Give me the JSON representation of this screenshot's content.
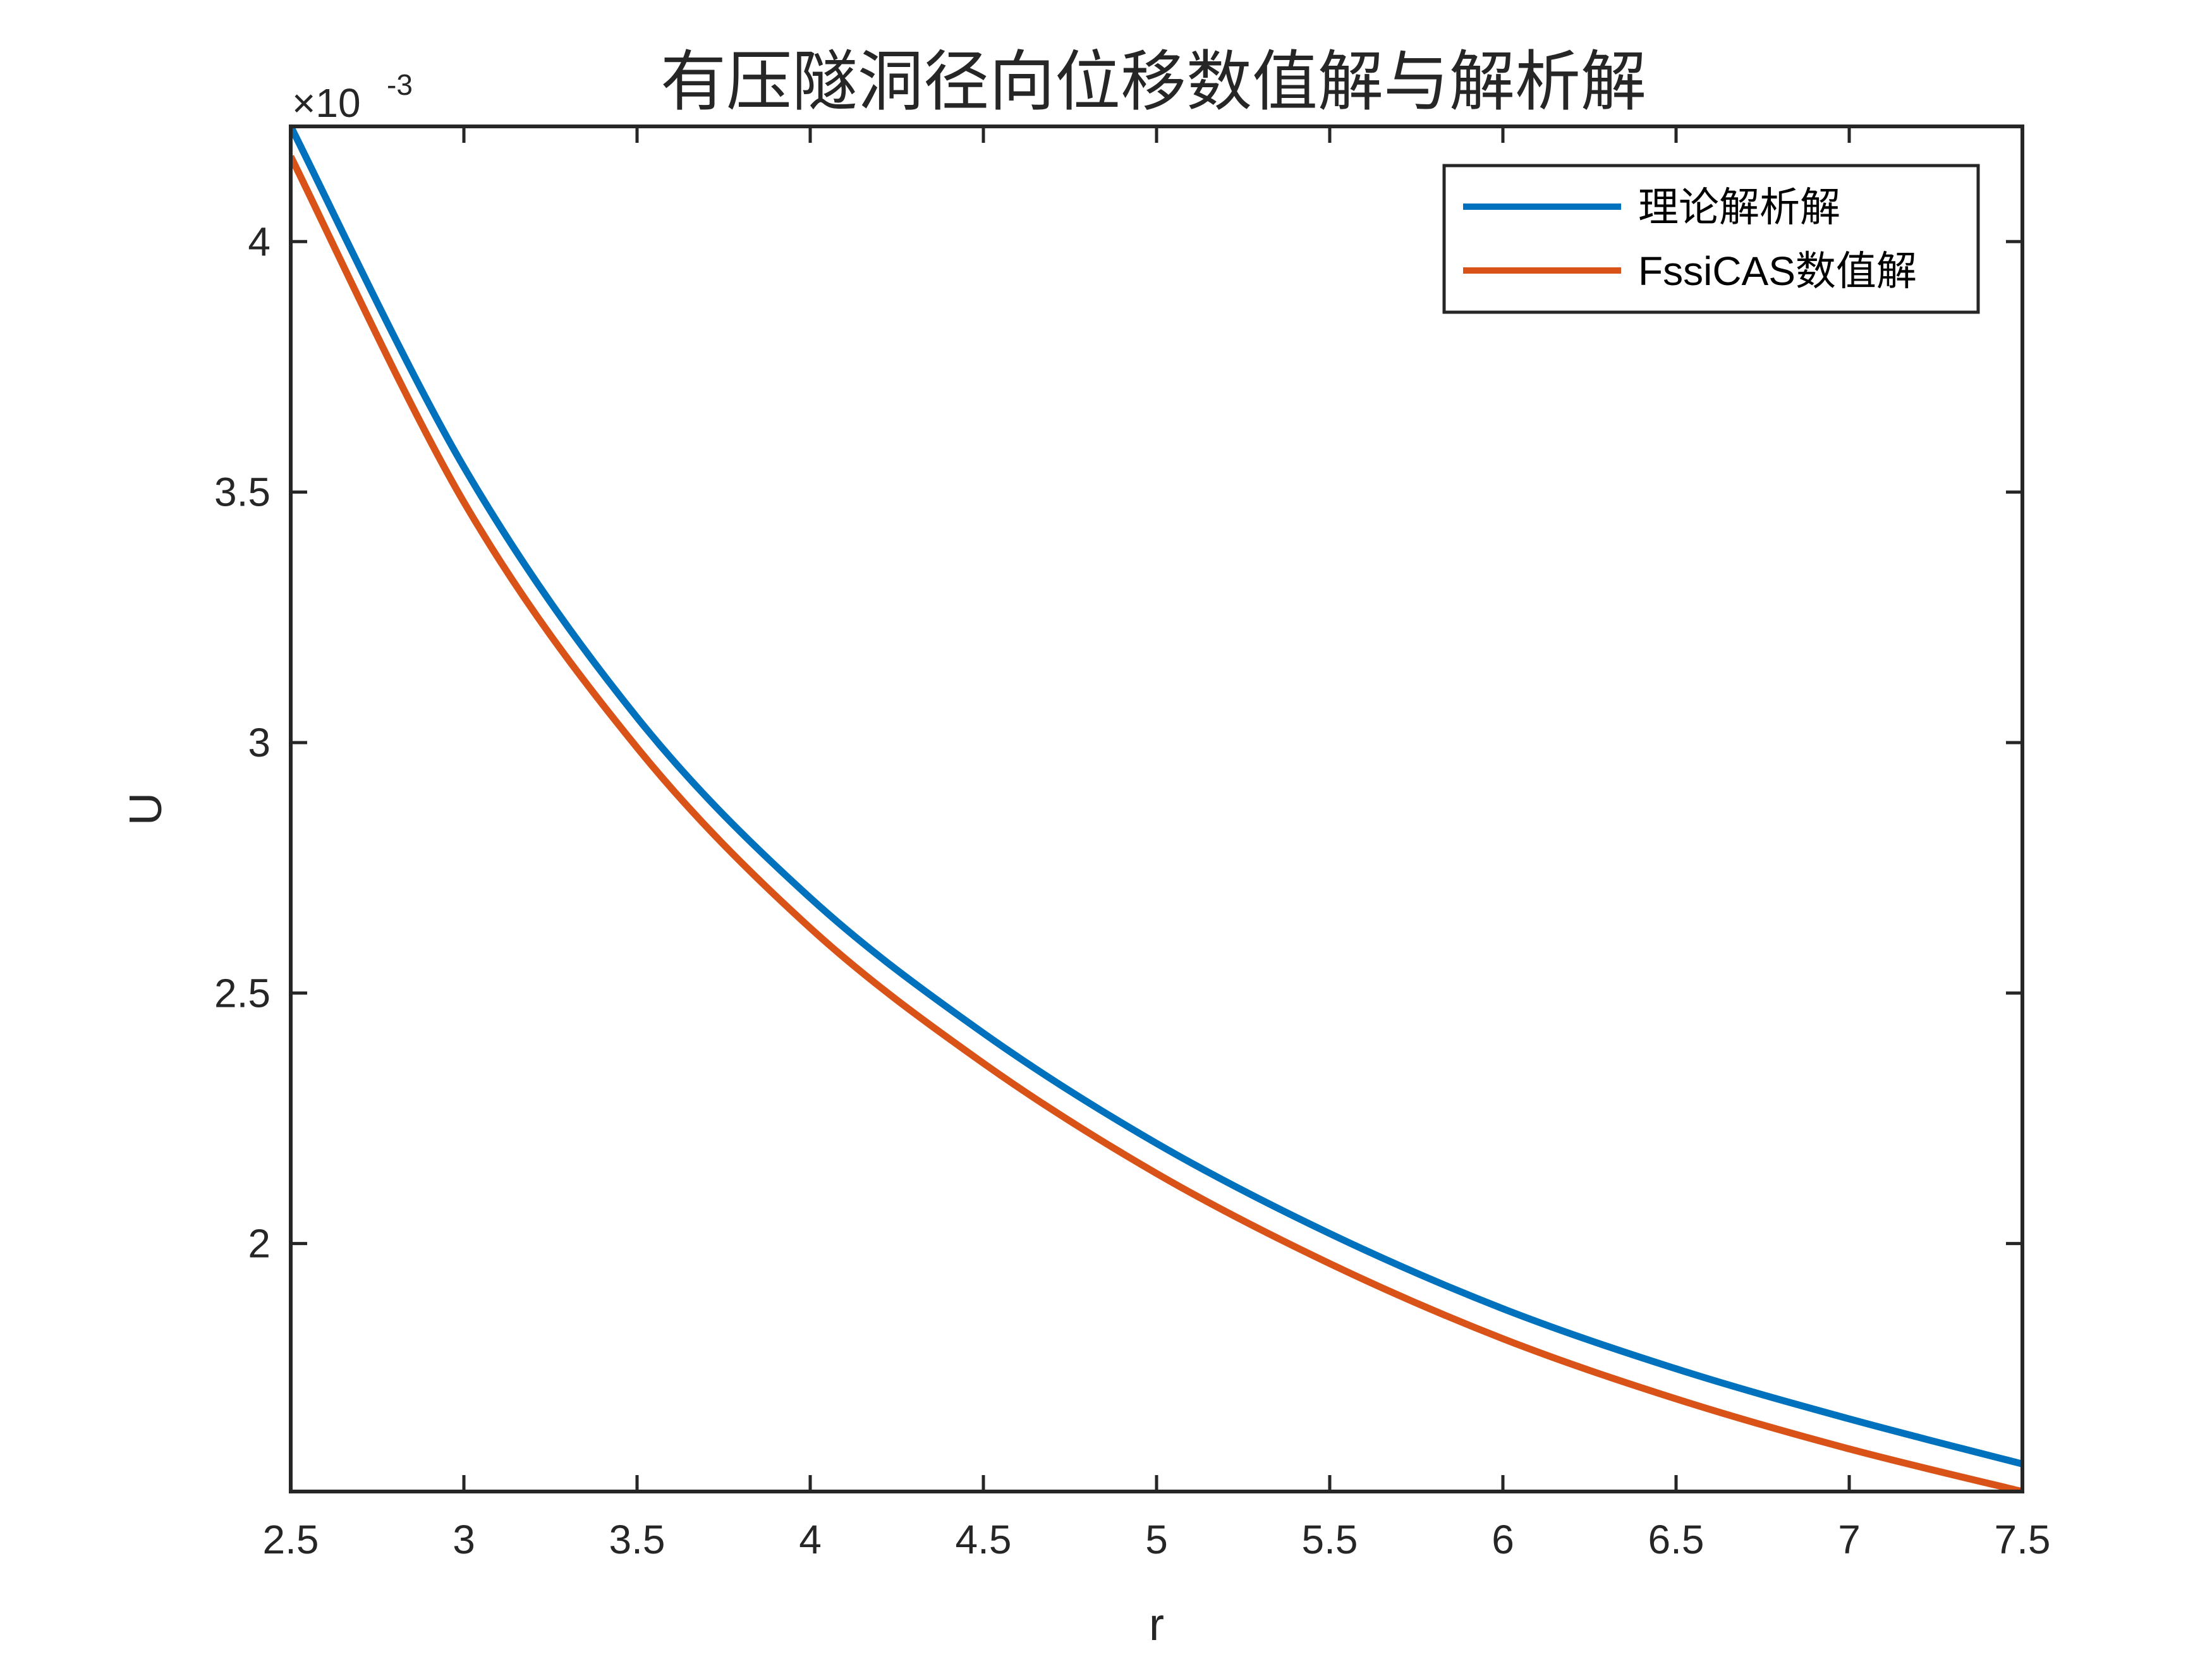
{
  "chart_data": {
    "type": "line",
    "title": "有压隧洞径向位移数值解与解析解",
    "xlabel": "r",
    "ylabel": "U",
    "xlim": [
      2.5,
      7.5
    ],
    "ylim": [
      1.505,
      4.23
    ],
    "xticks": [
      2.5,
      3,
      3.5,
      4,
      4.5,
      5,
      5.5,
      6,
      6.5,
      7,
      7.5
    ],
    "xtick_labels": [
      "2.5",
      "3",
      "3.5",
      "4",
      "4.5",
      "5",
      "5.5",
      "6",
      "6.5",
      "7",
      "7.5"
    ],
    "yticks": [
      2,
      2.5,
      3,
      3.5,
      4
    ],
    "ytick_labels": [
      "2",
      "2.5",
      "3",
      "3.5",
      "4"
    ],
    "y_exponent": {
      "base": "×10",
      "power": "-3"
    },
    "grid": false,
    "legend_position": "top-right",
    "x": [
      2.5,
      3.0,
      3.5,
      4.0,
      4.5,
      5.0,
      5.5,
      6.0,
      6.5,
      7.0,
      7.5
    ],
    "series": [
      {
        "name": "理论解析解",
        "color": "#0072BD",
        "values": [
          4.23,
          3.55,
          3.05,
          2.69,
          2.42,
          2.2,
          2.02,
          1.87,
          1.75,
          1.65,
          1.56
        ]
      },
      {
        "name": "FssiCAS数值解",
        "color": "#D95319",
        "values": [
          4.17,
          3.48,
          2.99,
          2.63,
          2.36,
          2.14,
          1.96,
          1.81,
          1.69,
          1.59,
          1.505
        ]
      }
    ]
  }
}
